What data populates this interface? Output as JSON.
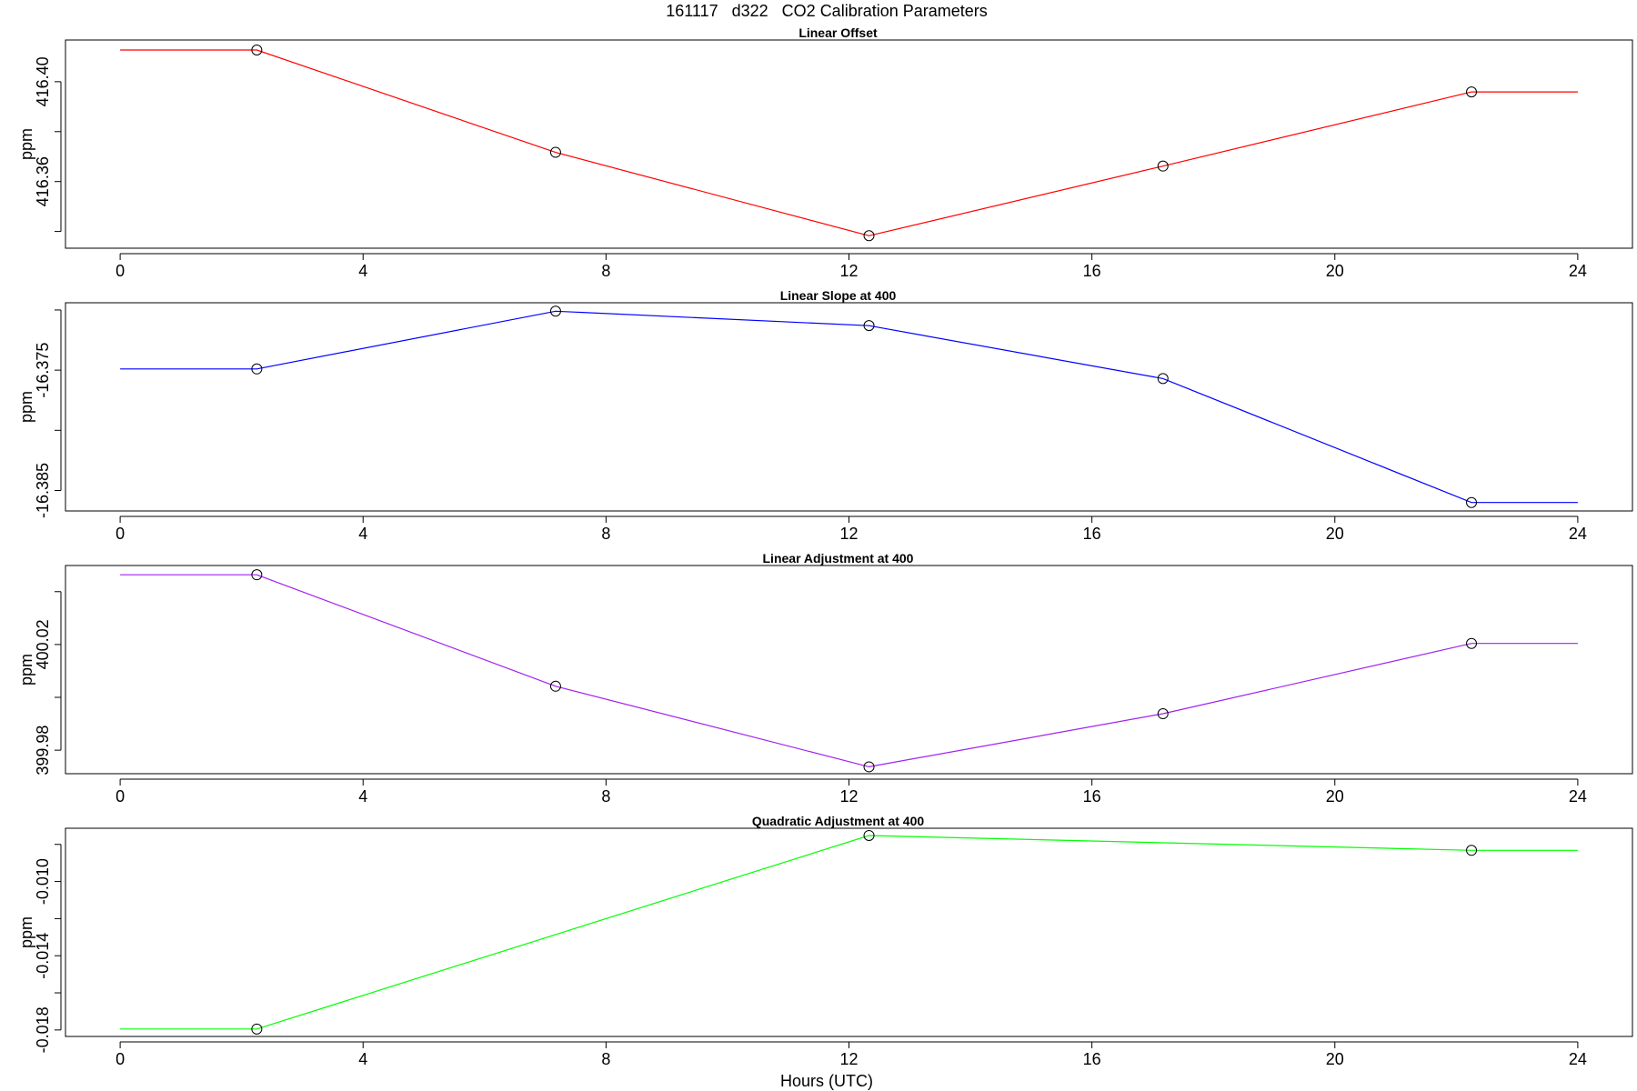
{
  "figure": {
    "title": "161117   d322   CO2 Calibration Parameters",
    "xlabel": "Hours (UTC)"
  },
  "chart_data": [
    {
      "type": "line",
      "title": "Linear Offset",
      "ylabel": "ppm",
      "xlabel": "",
      "color": "#ff0000",
      "x_ticks": [
        0,
        4,
        8,
        12,
        16,
        20,
        24
      ],
      "y_ticks": [
        416.36,
        416.4
      ],
      "y_tick_labels": [
        "416.36",
        "416.40"
      ],
      "y_minor_ticks": [
        416.34,
        416.38,
        416.42
      ],
      "xlim": [
        -0.9,
        24.9
      ],
      "ylim": [
        416.3333,
        416.4167
      ],
      "line_x": [
        0,
        2.25,
        7.17,
        12.33,
        17.17,
        22.25,
        24
      ],
      "line_y": [
        416.4127,
        416.4127,
        416.3717,
        416.3383,
        416.3662,
        416.3959,
        416.3959
      ],
      "points_x": [
        2.25,
        7.17,
        12.33,
        17.17,
        22.25
      ],
      "points_y": [
        416.4127,
        416.3717,
        416.3383,
        416.3662,
        416.3959
      ],
      "grid": false
    },
    {
      "type": "line",
      "title": "Linear Slope at 400",
      "ylabel": "ppm",
      "xlabel": "",
      "color": "#0000ff",
      "x_ticks": [
        0,
        4,
        8,
        12,
        16,
        20,
        24
      ],
      "y_ticks": [
        -16.375,
        -16.385
      ],
      "y_tick_labels": [
        "-16.375",
        "-16.385"
      ],
      "y_minor_ticks": [
        -16.37,
        -16.38
      ],
      "xlim": [
        -0.9,
        24.9
      ],
      "ylim": [
        -16.3867,
        -16.3694
      ],
      "line_x": [
        0,
        2.25,
        7.17,
        12.33,
        17.17,
        22.25,
        24
      ],
      "line_y": [
        -16.3749,
        -16.3749,
        -16.3701,
        -16.3713,
        -16.3757,
        -16.386,
        -16.386
      ],
      "points_x": [
        2.25,
        7.17,
        12.33,
        17.17,
        22.25
      ],
      "points_y": [
        -16.3749,
        -16.3701,
        -16.3713,
        -16.3757,
        -16.386
      ],
      "grid": false
    },
    {
      "type": "line",
      "title": "Linear Adjustment at 400",
      "ylabel": "ppm",
      "xlabel": "",
      "color": "#a020f0",
      "x_ticks": [
        0,
        4,
        8,
        12,
        16,
        20,
        24
      ],
      "y_ticks": [
        399.98,
        400.02
      ],
      "y_tick_labels": [
        "399.98",
        "400.02"
      ],
      "y_minor_ticks": [
        400.0,
        400.04
      ],
      "xlim": [
        -0.9,
        24.9
      ],
      "ylim": [
        399.9711,
        400.0499
      ],
      "line_x": [
        0,
        2.25,
        7.17,
        12.33,
        17.17,
        22.25,
        24
      ],
      "line_y": [
        400.0464,
        400.0464,
        400.0042,
        399.9737,
        399.9938,
        400.0204,
        400.0204
      ],
      "points_x": [
        2.25,
        7.17,
        12.33,
        17.17,
        22.25
      ],
      "points_y": [
        400.0464,
        400.0042,
        399.9737,
        399.9938,
        400.0204
      ],
      "grid": false
    },
    {
      "type": "line",
      "title": "Quadratic Adjustment at 400",
      "ylabel": "ppm",
      "xlabel": "Hours (UTC)",
      "color": "#00ff00",
      "x_ticks": [
        0,
        4,
        8,
        12,
        16,
        20,
        24
      ],
      "y_ticks": [
        -0.018,
        -0.014,
        -0.01
      ],
      "y_tick_labels": [
        "-0.018",
        "-0.014",
        "-0.010"
      ],
      "y_minor_ticks": [
        -0.016,
        -0.012,
        -0.008
      ],
      "xlim": [
        -0.9,
        24.9
      ],
      "ylim": [
        -0.01835,
        -0.00713
      ],
      "line_x": [
        0,
        2.25,
        12.33,
        22.25,
        24
      ],
      "line_y": [
        -0.01795,
        -0.01795,
        -0.00752,
        -0.00832,
        -0.00832
      ],
      "points_x": [
        2.25,
        12.33,
        22.25
      ],
      "points_y": [
        -0.01795,
        -0.00752,
        -0.00832
      ],
      "grid": false
    }
  ]
}
